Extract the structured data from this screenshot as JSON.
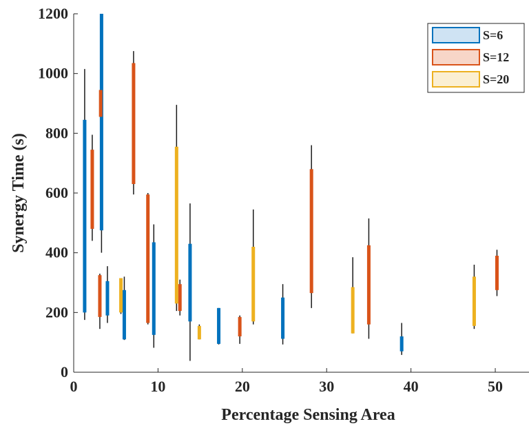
{
  "chart_data": {
    "type": "boxplot",
    "xlabel": "Percentage Sensing Area",
    "ylabel": "Synergy Time (s)",
    "xlim": [
      0,
      54
    ],
    "ylim": [
      0,
      1200
    ],
    "xticks": [
      0,
      10,
      20,
      30,
      40,
      50
    ],
    "yticks": [
      0,
      200,
      400,
      600,
      800,
      1000,
      1200
    ],
    "grid": false,
    "legend_position": "top-right",
    "series": [
      {
        "name": "S=6",
        "color": "#0072BD",
        "fill": "#cfe3f3",
        "boxes": [
          {
            "x": 1.3,
            "whisker_low": 175,
            "q1": 200,
            "q3": 845,
            "whisker_high": 1015
          },
          {
            "x": 3.3,
            "whisker_low": 400,
            "q1": 475,
            "q3": 1200,
            "whisker_high": 1200
          },
          {
            "x": 4.0,
            "whisker_low": 165,
            "q1": 190,
            "q3": 305,
            "whisker_high": 355
          },
          {
            "x": 6.0,
            "whisker_low": 108,
            "q1": 110,
            "q3": 275,
            "whisker_high": 320
          },
          {
            "x": 9.5,
            "whisker_low": 82,
            "q1": 125,
            "q3": 435,
            "whisker_high": 495
          },
          {
            "x": 13.8,
            "whisker_low": 38,
            "q1": 170,
            "q3": 430,
            "whisker_high": 565
          },
          {
            "x": 17.2,
            "whisker_low": 93,
            "q1": 95,
            "q3": 215,
            "whisker_high": 215
          },
          {
            "x": 24.8,
            "whisker_low": 93,
            "q1": 112,
            "q3": 250,
            "whisker_high": 295
          },
          {
            "x": 38.9,
            "whisker_low": 58,
            "q1": 70,
            "q3": 120,
            "whisker_high": 165
          }
        ]
      },
      {
        "name": "S=12",
        "color": "#D95319",
        "fill": "#f7d6c8",
        "boxes": [
          {
            "x": 2.2,
            "whisker_low": 440,
            "q1": 480,
            "q3": 745,
            "whisker_high": 795
          },
          {
            "x": 3.1,
            "whisker_low": 145,
            "q1": 185,
            "q3": 325,
            "whisker_high": 330
          },
          {
            "x": 3.2,
            "whisker_low": 840,
            "q1": 855,
            "q3": 945,
            "whisker_high": 955
          },
          {
            "x": 7.1,
            "whisker_low": 595,
            "q1": 630,
            "q3": 1035,
            "whisker_high": 1075
          },
          {
            "x": 8.8,
            "whisker_low": 160,
            "q1": 165,
            "q3": 595,
            "whisker_high": 600
          },
          {
            "x": 12.6,
            "whisker_low": 190,
            "q1": 205,
            "q3": 295,
            "whisker_high": 310
          },
          {
            "x": 19.7,
            "whisker_low": 95,
            "q1": 120,
            "q3": 185,
            "whisker_high": 190
          },
          {
            "x": 28.2,
            "whisker_low": 215,
            "q1": 265,
            "q3": 680,
            "whisker_high": 760
          },
          {
            "x": 35.0,
            "whisker_low": 112,
            "q1": 160,
            "q3": 425,
            "whisker_high": 515
          },
          {
            "x": 50.2,
            "whisker_low": 255,
            "q1": 275,
            "q3": 390,
            "whisker_high": 410
          }
        ]
      },
      {
        "name": "S=20",
        "color": "#EDB120",
        "fill": "#fbefd2",
        "boxes": [
          {
            "x": 5.6,
            "whisker_low": 195,
            "q1": 200,
            "q3": 315,
            "whisker_high": 315
          },
          {
            "x": 12.2,
            "whisker_low": 205,
            "q1": 230,
            "q3": 755,
            "whisker_high": 895
          },
          {
            "x": 14.9,
            "whisker_low": 110,
            "q1": 110,
            "q3": 155,
            "whisker_high": 160
          },
          {
            "x": 21.3,
            "whisker_low": 160,
            "q1": 170,
            "q3": 420,
            "whisker_high": 545
          },
          {
            "x": 33.1,
            "whisker_low": 130,
            "q1": 130,
            "q3": 285,
            "whisker_high": 385
          },
          {
            "x": 47.5,
            "whisker_low": 145,
            "q1": 155,
            "q3": 320,
            "whisker_high": 360
          }
        ]
      }
    ]
  }
}
